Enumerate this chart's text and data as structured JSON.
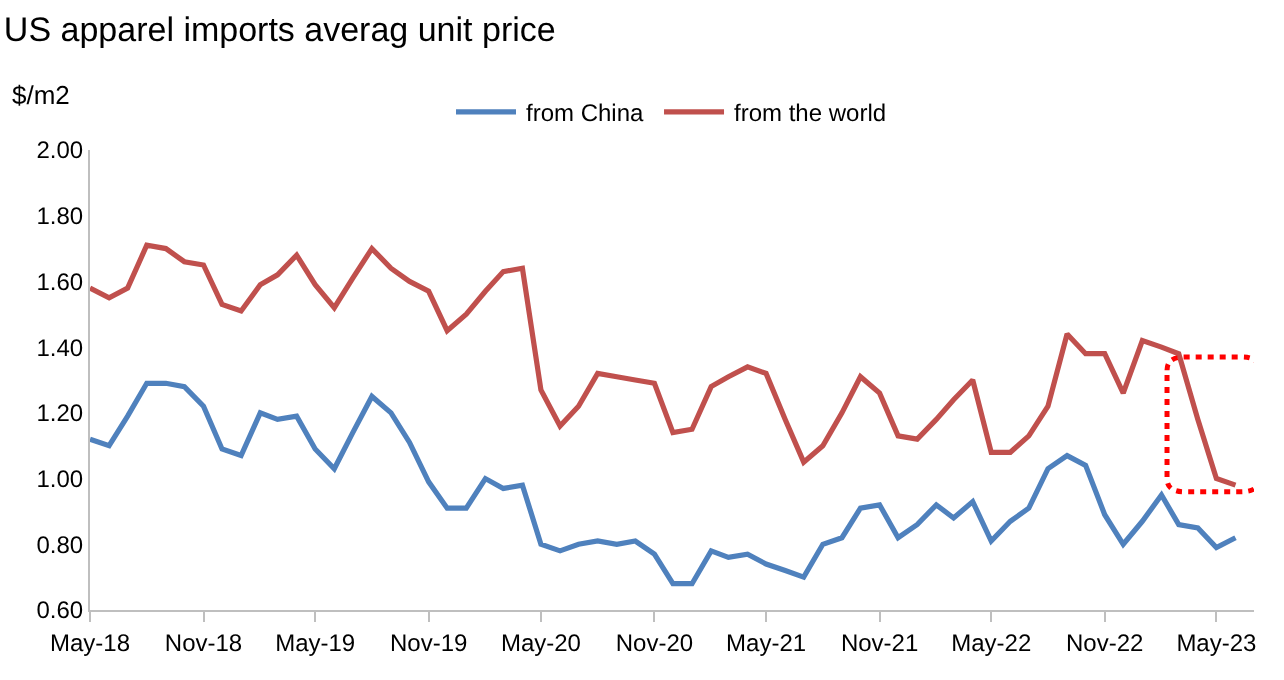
{
  "chart_data": {
    "type": "line",
    "title": "US apparel imports averag unit price",
    "ylabel": "$/m2",
    "x": [
      "2018-05",
      "2018-06",
      "2018-07",
      "2018-08",
      "2018-09",
      "2018-10",
      "2018-11",
      "2018-12",
      "2019-01",
      "2019-02",
      "2019-03",
      "2019-04",
      "2019-05",
      "2019-06",
      "2019-07",
      "2019-08",
      "2019-09",
      "2019-10",
      "2019-11",
      "2019-12",
      "2020-01",
      "2020-02",
      "2020-03",
      "2020-04",
      "2020-05",
      "2020-06",
      "2020-07",
      "2020-08",
      "2020-09",
      "2020-10",
      "2020-11",
      "2020-12",
      "2021-01",
      "2021-02",
      "2021-03",
      "2021-04",
      "2021-05",
      "2021-06",
      "2021-07",
      "2021-08",
      "2021-09",
      "2021-10",
      "2021-11",
      "2021-12",
      "2022-01",
      "2022-02",
      "2022-03",
      "2022-04",
      "2022-05",
      "2022-06",
      "2022-07",
      "2022-08",
      "2022-09",
      "2022-10",
      "2022-11",
      "2022-12",
      "2023-01",
      "2023-02",
      "2023-03",
      "2023-04",
      "2023-05",
      "2023-06"
    ],
    "series": [
      {
        "name": "from China",
        "color": "#4f81bd",
        "values": [
          1.12,
          1.1,
          1.19,
          1.29,
          1.29,
          1.28,
          1.22,
          1.09,
          1.07,
          1.2,
          1.18,
          1.19,
          1.09,
          1.03,
          1.14,
          1.25,
          1.2,
          1.11,
          0.99,
          0.91,
          0.91,
          1.0,
          0.97,
          0.98,
          0.8,
          0.78,
          0.8,
          0.81,
          0.8,
          0.81,
          0.77,
          0.68,
          0.68,
          0.78,
          0.76,
          0.77,
          0.74,
          0.72,
          0.7,
          0.8,
          0.82,
          0.91,
          0.92,
          0.82,
          0.86,
          0.92,
          0.88,
          0.93,
          0.81,
          0.87,
          0.91,
          1.03,
          1.07,
          1.04,
          0.89,
          0.8,
          0.87,
          0.95,
          0.86,
          0.85,
          0.79,
          0.82
        ]
      },
      {
        "name": "from the world",
        "color": "#c0504d",
        "values": [
          1.58,
          1.55,
          1.58,
          1.71,
          1.7,
          1.66,
          1.65,
          1.53,
          1.51,
          1.59,
          1.62,
          1.68,
          1.59,
          1.52,
          1.61,
          1.7,
          1.64,
          1.6,
          1.57,
          1.45,
          1.5,
          1.57,
          1.63,
          1.64,
          1.27,
          1.16,
          1.22,
          1.32,
          1.31,
          1.3,
          1.29,
          1.14,
          1.15,
          1.28,
          1.31,
          1.34,
          1.32,
          1.18,
          1.05,
          1.1,
          1.2,
          1.31,
          1.26,
          1.13,
          1.12,
          1.18,
          1.24,
          1.3,
          1.08,
          1.08,
          1.13,
          1.22,
          1.44,
          1.38,
          1.38,
          1.26,
          1.42,
          1.4,
          1.38,
          1.18,
          1.0,
          0.98
        ]
      }
    ],
    "xlim": [
      "2018-05",
      "2023-07"
    ],
    "xticks": [
      {
        "value": "2018-05",
        "label": "May-18"
      },
      {
        "value": "2018-11",
        "label": "Nov-18"
      },
      {
        "value": "2019-05",
        "label": "May-19"
      },
      {
        "value": "2019-11",
        "label": "Nov-19"
      },
      {
        "value": "2020-05",
        "label": "May-20"
      },
      {
        "value": "2020-11",
        "label": "Nov-20"
      },
      {
        "value": "2021-05",
        "label": "May-21"
      },
      {
        "value": "2021-11",
        "label": "Nov-21"
      },
      {
        "value": "2022-05",
        "label": "May-22"
      },
      {
        "value": "2022-11",
        "label": "Nov-22"
      },
      {
        "value": "2023-05",
        "label": "May-23"
      }
    ],
    "ylim": [
      0.6,
      2.0
    ],
    "yticks": [
      {
        "value": 0.6,
        "label": "0.60"
      },
      {
        "value": 0.8,
        "label": "0.80"
      },
      {
        "value": 1.0,
        "label": "1.00"
      },
      {
        "value": 1.2,
        "label": "1.20"
      },
      {
        "value": 1.4,
        "label": "1.40"
      },
      {
        "value": 1.6,
        "label": "1.60"
      },
      {
        "value": 1.8,
        "label": "1.80"
      },
      {
        "value": 2.0,
        "label": "2.00"
      }
    ],
    "grid": false,
    "legend": "top",
    "marker": "none",
    "line_style": "solid"
  }
}
